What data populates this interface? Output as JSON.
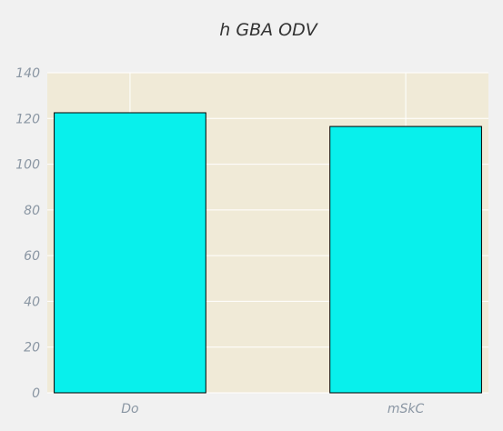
{
  "chart_data": {
    "type": "bar",
    "title": "h GBA  ODV",
    "xlabel": "",
    "ylabel": "",
    "categories": [
      "Do",
      "mSkC"
    ],
    "values": [
      122.5,
      116.5
    ],
    "ylim": [
      0,
      140
    ],
    "yticks": [
      0,
      20,
      40,
      60,
      80,
      100,
      120,
      140
    ],
    "grid": true,
    "legend": "none",
    "colors": {
      "bar_fill": "#08f0ec",
      "bar_edge": "#000000",
      "plot_background": "#f0ead7",
      "figure_background": "#f1f1f1",
      "grid": "#ffffff"
    }
  }
}
